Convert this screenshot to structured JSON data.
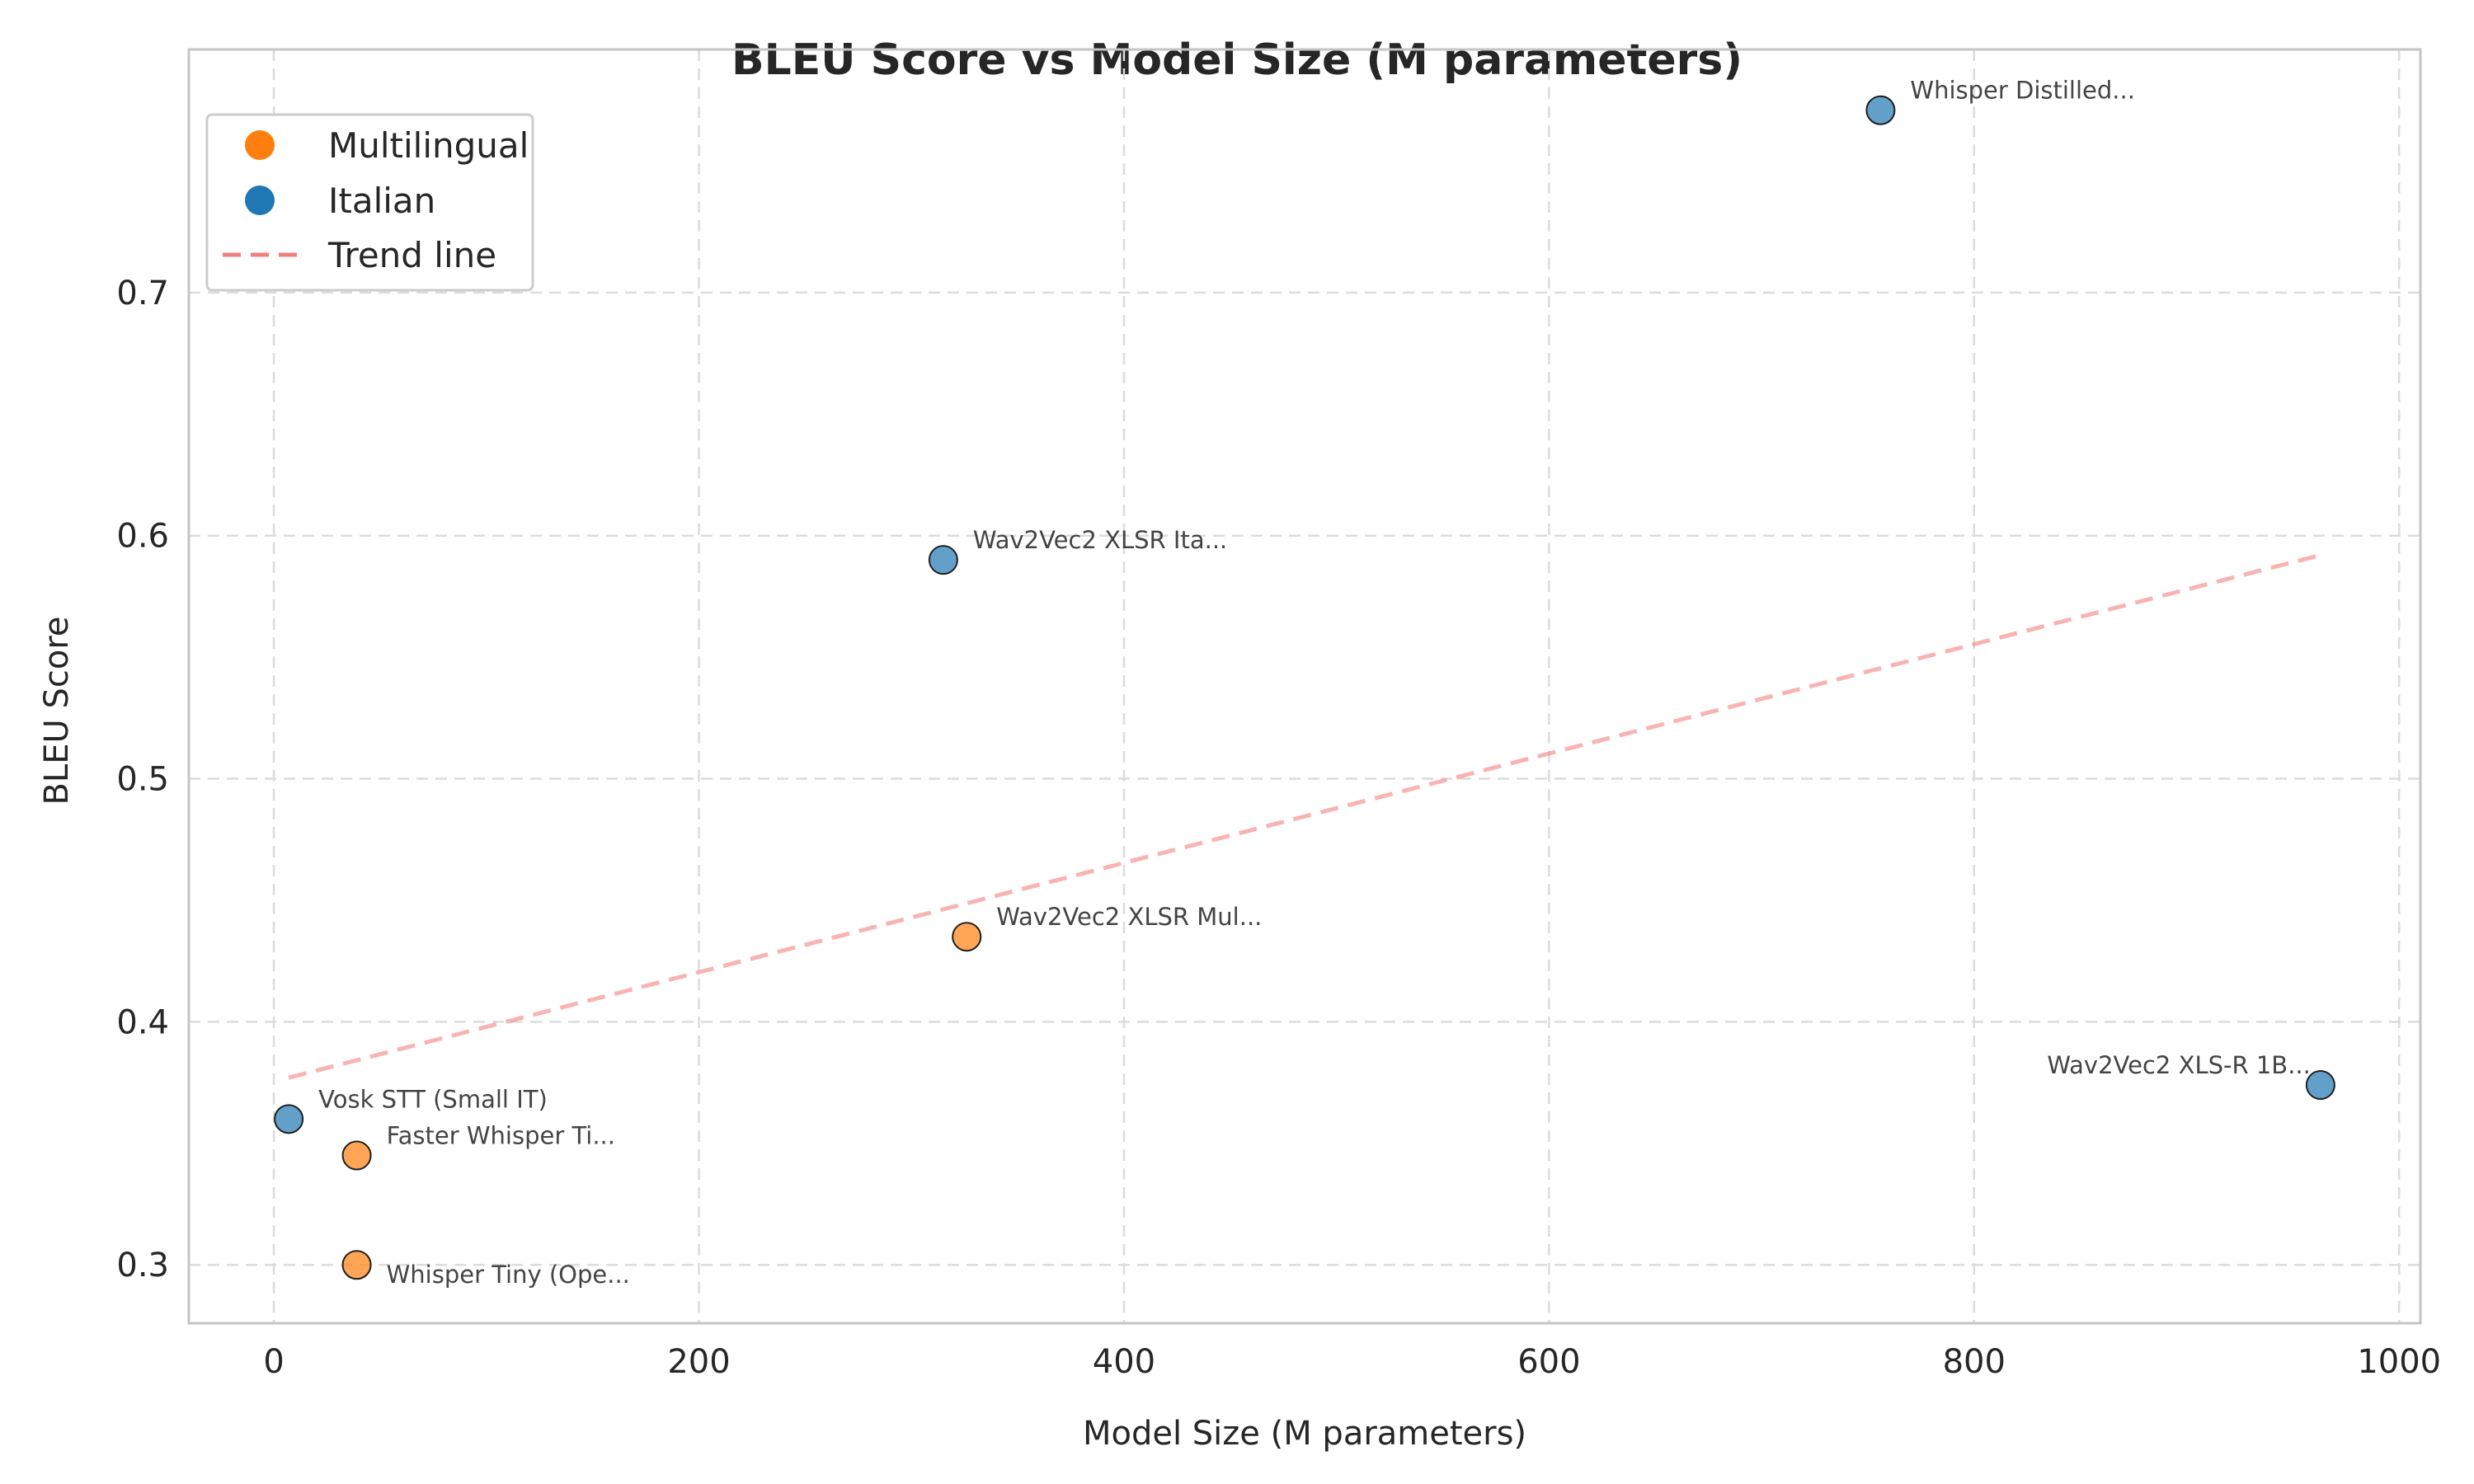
{
  "chart_data": {
    "type": "scatter",
    "title": "BLEU Score vs Model Size (M parameters)",
    "xlabel": "Model Size (M parameters)",
    "ylabel": "BLEU Score",
    "xlim": [
      -40,
      1010
    ],
    "ylim": [
      0.276,
      0.8
    ],
    "xticks": [
      0,
      200,
      400,
      600,
      800,
      1000
    ],
    "yticks": [
      0.3,
      0.4,
      0.5,
      0.6,
      0.7
    ],
    "grid": true,
    "legend_position": "top-left",
    "colors": {
      "Multilingual": "#ff7f0e",
      "Italian": "#1f77b4",
      "trend": "#f08080"
    },
    "legend": [
      {
        "label": "Multilingual",
        "kind": "marker",
        "color": "#ff7f0e"
      },
      {
        "label": "Italian",
        "kind": "marker",
        "color": "#1f77b4"
      },
      {
        "label": "Trend line",
        "kind": "dashed-line",
        "color": "#f08080"
      }
    ],
    "points": [
      {
        "label": "Whisper Distilled...",
        "x": 756,
        "y": 0.775,
        "group": "Italian",
        "label_side": "right"
      },
      {
        "label": "Wav2Vec2 XLSR Ita...",
        "x": 315,
        "y": 0.59,
        "group": "Italian",
        "label_side": "right"
      },
      {
        "label": "Wav2Vec2 XLSR Mul...",
        "x": 326,
        "y": 0.435,
        "group": "Multilingual",
        "label_side": "right"
      },
      {
        "label": "Wav2Vec2 XLS-R 1B...",
        "x": 963,
        "y": 0.374,
        "group": "Italian",
        "label_side": "left"
      },
      {
        "label": "Vosk STT (Small IT)",
        "x": 7,
        "y": 0.36,
        "group": "Italian",
        "label_side": "right"
      },
      {
        "label": "Faster Whisper Ti...",
        "x": 39,
        "y": 0.345,
        "group": "Multilingual",
        "label_side": "right"
      },
      {
        "label": "Whisper Tiny (Ope...",
        "x": 39,
        "y": 0.3,
        "group": "Multilingual",
        "label_side": "right-below"
      }
    ],
    "trend_line": {
      "x": [
        7,
        963
      ],
      "y": [
        0.377,
        0.592
      ]
    }
  }
}
